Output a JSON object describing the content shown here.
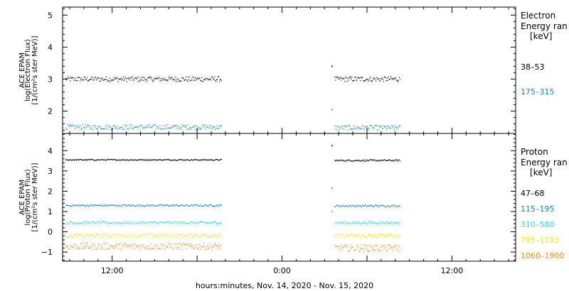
{
  "x_axis": {
    "label": "hours:minutes, Nov. 14, 2020 - Nov. 15, 2020",
    "range_hours": [
      0,
      32
    ],
    "tick_labels": [
      {
        "label": "12:00",
        "hour": 3.5
      },
      {
        "label": "0:00",
        "hour": 15.5
      },
      {
        "label": "12:00",
        "hour": 27.5
      }
    ]
  },
  "chart_data": [
    {
      "type": "scatter",
      "panel": "electron",
      "ylabel_lines": [
        "ACE EPAM",
        "log(Electron Flux)",
        "[1/(cm²s ster MeV)]"
      ],
      "ylim": [
        1.3,
        5.25
      ],
      "yticks": [
        2,
        3,
        4,
        5
      ],
      "legend_title_lines": [
        "Electron",
        "Energy ran",
        "[keV]"
      ],
      "series": [
        {
          "name": "38-53",
          "color": "#000000",
          "segments": [
            {
              "x_range": [
                0.2,
                11.2
              ],
              "level": 3.0,
              "spread": 0.08
            },
            {
              "x_range": [
                19.2,
                23.8
              ],
              "level": 3.0,
              "spread": 0.08
            }
          ],
          "spikes": [
            {
              "x": 19.0,
              "y": 3.4
            }
          ]
        },
        {
          "name": "175-315",
          "color": "#1E7FC9",
          "segments": [
            {
              "x_range": [
                0.2,
                11.2
              ],
              "level": 1.5,
              "spread": 0.08
            },
            {
              "x_range": [
                19.2,
                23.8
              ],
              "level": 1.48,
              "spread": 0.08
            }
          ],
          "spikes": [
            {
              "x": 19.0,
              "y": 2.05
            }
          ]
        }
      ]
    },
    {
      "type": "scatter",
      "panel": "proton",
      "ylabel_lines": [
        "ACE EPAM",
        "log(Proton Flux)",
        "[1/(cm²s ster MeV)]"
      ],
      "ylim": [
        -1.45,
        4.85
      ],
      "yticks": [
        -1,
        0,
        1,
        2,
        3,
        4
      ],
      "legend_title_lines": [
        "Proton",
        "Energy ran",
        "[keV]"
      ],
      "series": [
        {
          "name": "47-68",
          "color": "#000000",
          "segments": [
            {
              "x_range": [
                0.2,
                11.2
              ],
              "level": 3.55,
              "spread": 0.03
            },
            {
              "x_range": [
                19.2,
                23.8
              ],
              "level": 3.52,
              "spread": 0.04
            }
          ],
          "spikes": [
            {
              "x": 19.0,
              "y": 4.25
            }
          ]
        },
        {
          "name": "115-195",
          "color": "#1E7FC9",
          "segments": [
            {
              "x_range": [
                0.2,
                11.2
              ],
              "level": 1.3,
              "spread": 0.05
            },
            {
              "x_range": [
                19.2,
                23.8
              ],
              "level": 1.28,
              "spread": 0.05
            }
          ],
          "spikes": [
            {
              "x": 19.0,
              "y": 2.15
            }
          ]
        },
        {
          "name": "310-580",
          "color": "#33D6D6",
          "segments": [
            {
              "x_range": [
                0.2,
                11.2
              ],
              "level": 0.45,
              "spread": 0.07
            },
            {
              "x_range": [
                19.2,
                23.8
              ],
              "level": 0.45,
              "spread": 0.07
            }
          ],
          "spikes": [
            {
              "x": 19.0,
              "y": 1.0
            }
          ]
        },
        {
          "name": "795-1193",
          "color": "#E8E81C",
          "segments": [
            {
              "x_range": [
                0.2,
                11.2
              ],
              "level": -0.18,
              "spread": 0.1
            },
            {
              "x_range": [
                19.2,
                23.8
              ],
              "level": -0.2,
              "spread": 0.1
            }
          ],
          "spikes": []
        },
        {
          "name": "1060-1900",
          "color": "#F08C1A",
          "segments": [
            {
              "x_range": [
                0.2,
                11.2
              ],
              "level": -0.72,
              "spread": 0.17
            },
            {
              "x_range": [
                19.2,
                23.8
              ],
              "level": -0.8,
              "spread": 0.17
            }
          ],
          "spikes": []
        }
      ]
    }
  ]
}
